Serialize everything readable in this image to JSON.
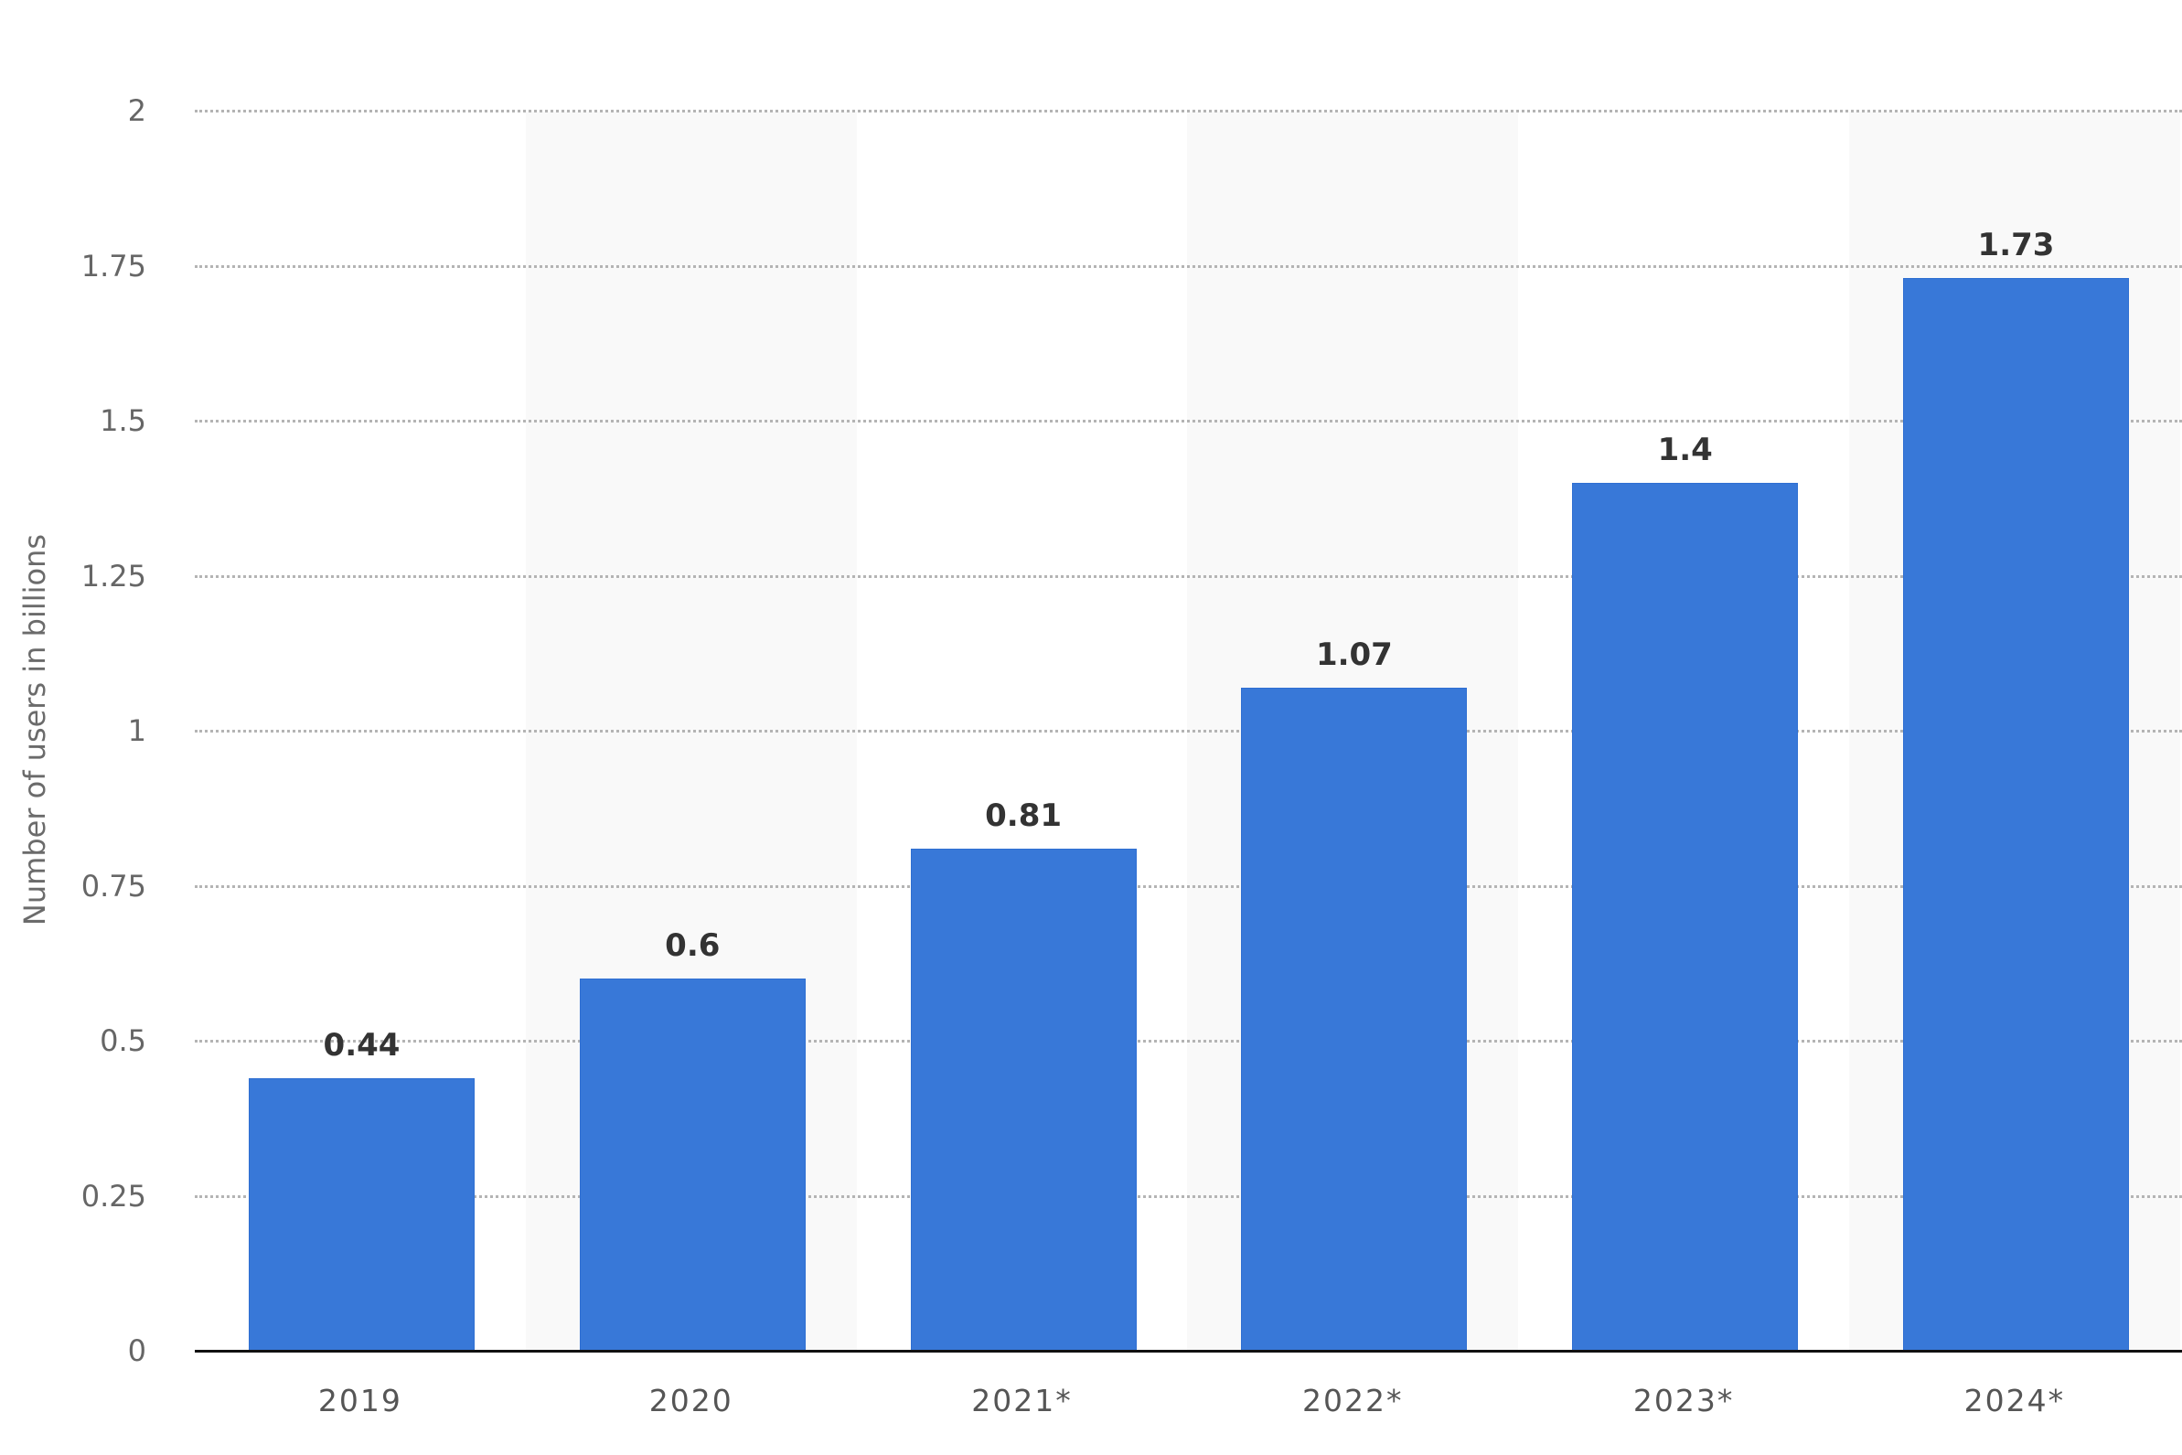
{
  "chart_data": {
    "type": "bar",
    "title": "",
    "xlabel": "",
    "ylabel": "Number of users in billions",
    "categories": [
      "2019",
      "2020",
      "2021*",
      "2022*",
      "2023*",
      "2024*"
    ],
    "values": [
      0.44,
      0.6,
      0.81,
      1.07,
      1.4,
      1.73
    ],
    "value_labels": [
      "0.44",
      "0.6",
      "0.81",
      "1.07",
      "1.4",
      "1.73"
    ],
    "ylim": [
      0,
      2
    ],
    "yticks": [
      0,
      0.25,
      0.5,
      0.75,
      1,
      1.25,
      1.5,
      1.75,
      2
    ],
    "ytick_labels": [
      "0",
      "0.25",
      "0.5",
      "0.75",
      "1",
      "1.25",
      "1.5",
      "1.75",
      "2"
    ],
    "grid": true,
    "grid_style": "dotted",
    "legend": null,
    "alternating_column_bands": true
  },
  "colors": {
    "bar": "#3878d8",
    "band": "#f9f9f9",
    "gridline": "#b4b4b4",
    "axis_line": "#111111",
    "value_label": "#333333",
    "tick_label": "#666666",
    "category_label": "#555555"
  }
}
